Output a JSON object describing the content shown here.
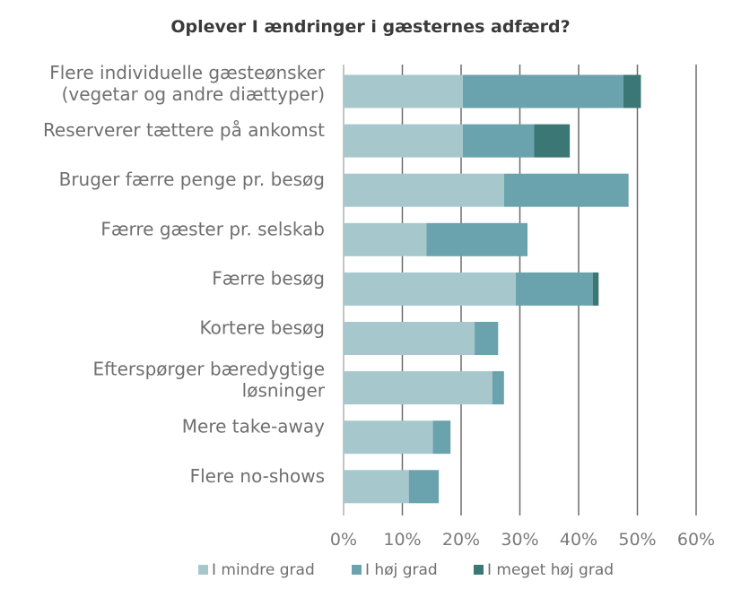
{
  "chart_data": {
    "type": "bar",
    "orientation": "horizontal",
    "stacked": true,
    "title": "Oplever I ændringer i gæsternes adfærd?",
    "categories": [
      [
        "Flere individuelle gæsteønsker",
        "(vegetar og andre diættyper)"
      ],
      [
        "Reserverer tættere på ankomst"
      ],
      [
        "Bruger færre penge pr. besøg"
      ],
      [
        "Færre gæster pr. selskab"
      ],
      [
        "Færre besøg"
      ],
      [
        "Kortere besøg"
      ],
      [
        "Efterspørger bæredygtige",
        "løsninger"
      ],
      [
        "Mere take-away"
      ],
      [
        "Flere no-shows"
      ]
    ],
    "series": [
      {
        "name": "I mindre grad",
        "color": "#a6c8cd",
        "values": [
          20.3,
          20.3,
          27.3,
          14.1,
          29.3,
          22.3,
          25.3,
          15.2,
          11.1
        ]
      },
      {
        "name": "I  høj grad",
        "color": "#6aa3ae",
        "values": [
          27.3,
          12.1,
          21.2,
          17.2,
          13.1,
          4.0,
          2.0,
          3.0,
          5.1
        ]
      },
      {
        "name": "I meget høj grad",
        "color": "#3b7775",
        "values": [
          3.0,
          6.1,
          0,
          0,
          1.0,
          0,
          0,
          0,
          0
        ]
      }
    ],
    "xlim": [
      0,
      60
    ],
    "xticks": [
      "0%",
      "10%",
      "20%",
      "30%",
      "40%",
      "50%",
      "60%"
    ],
    "grid": true,
    "legend": "bottom"
  }
}
